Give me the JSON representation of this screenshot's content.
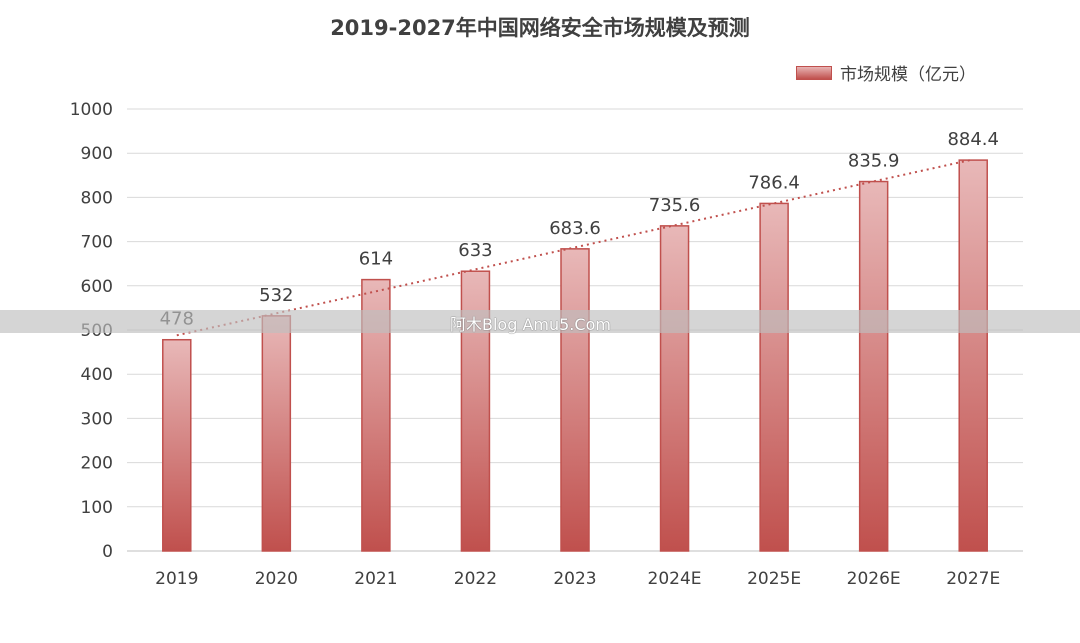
{
  "chart_data": {
    "type": "bar",
    "title": "2019-2027年中国网络安全市场规模及预测",
    "categories": [
      "2019",
      "2020",
      "2021",
      "2022",
      "2023",
      "2024E",
      "2025E",
      "2026E",
      "2027E"
    ],
    "series": [
      {
        "name": "市场规模（亿元）",
        "values": [
          478,
          532,
          614,
          633,
          683.6,
          735.6,
          786.4,
          835.9,
          884.4
        ]
      }
    ],
    "data_labels": [
      "478",
      "532",
      "614",
      "633",
      "683.6",
      "735.6",
      "786.4",
      "835.9",
      "884.4"
    ],
    "trendline": "linear, dotted",
    "ylim": [
      0,
      1000
    ],
    "yticks": [
      0,
      100,
      200,
      300,
      400,
      500,
      600,
      700,
      800,
      900,
      1000
    ],
    "grid": true,
    "legend_position": "top-right",
    "colors": {
      "bar_top": "#e8b8b8",
      "bar_bottom": "#c0504d",
      "bar_border": "#c0504d",
      "trend": "#c0504d",
      "grid": "#d9d9d9",
      "text": "#404040"
    }
  },
  "watermark": "阿木Blog Amu5.Com"
}
